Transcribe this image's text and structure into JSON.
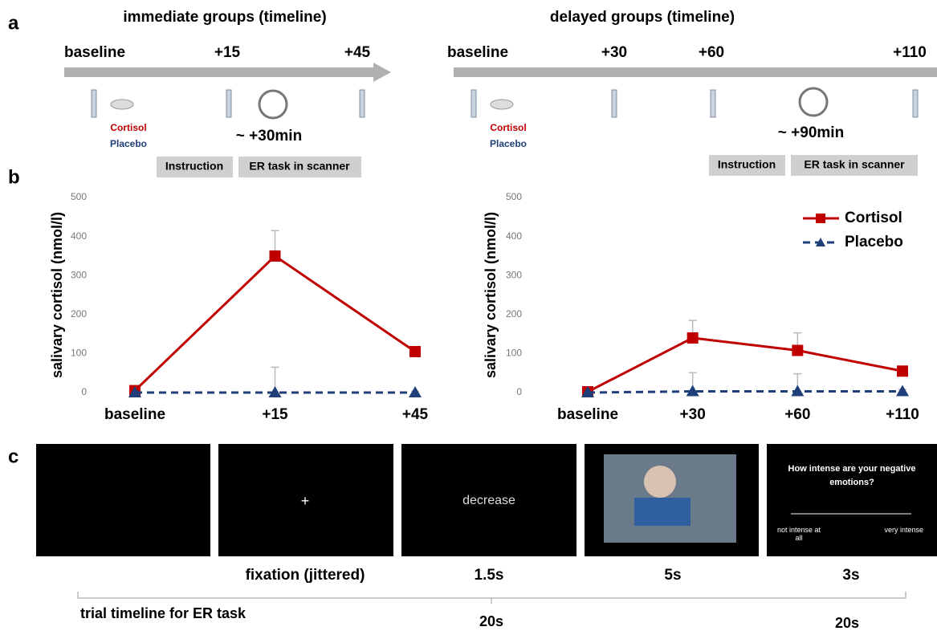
{
  "panel_labels": [
    "a",
    "b",
    "c"
  ],
  "timelines": [
    {
      "title": "immediate groups (timeline)",
      "labels": [
        "baseline",
        "+15",
        "+45"
      ],
      "drugs": [
        "Cortisol",
        "Placebo"
      ],
      "delay": "~ +30min",
      "phases": [
        "Instruction",
        "ER task in scanner"
      ]
    },
    {
      "title": "delayed groups (timeline)",
      "labels": [
        "baseline",
        "+30",
        "+60",
        "+110"
      ],
      "drugs": [
        "Cortisol",
        "Placebo"
      ],
      "delay": "~ +90min",
      "phases": [
        "Instruction",
        "ER task in scanner"
      ]
    }
  ],
  "chart_data": [
    {
      "type": "line",
      "y_label": "salivary cortisol (nmol/l)",
      "categories": [
        "baseline",
        "+15",
        "+45"
      ],
      "ylim": [
        0,
        500
      ],
      "yticks": [
        0,
        100,
        200,
        300,
        400,
        500
      ],
      "series": [
        {
          "name": "Cortisol",
          "color": "#c00000",
          "linestyle": "solid",
          "marker": "square",
          "values": [
            5,
            350,
            105
          ],
          "errors": [
            3,
            65,
            8
          ]
        },
        {
          "name": "Placebo",
          "color": "#1f3f7a",
          "linestyle": "dashed",
          "marker": "triangle",
          "values": [
            0,
            0,
            0
          ],
          "errors": [
            2,
            65,
            3
          ]
        }
      ]
    },
    {
      "type": "line",
      "y_label": "salivary cortisol (nmol/l)",
      "categories": [
        "baseline",
        "+30",
        "+60",
        "+110"
      ],
      "ylim": [
        0,
        500
      ],
      "yticks": [
        0,
        100,
        200,
        300,
        400,
        500
      ],
      "legend": "upper right",
      "series": [
        {
          "name": "Cortisol",
          "color": "#c00000",
          "linestyle": "solid",
          "marker": "square",
          "values": [
            2,
            140,
            108,
            55
          ],
          "errors": [
            3,
            45,
            45,
            10
          ]
        },
        {
          "name": "Placebo",
          "color": "#1f3f7a",
          "linestyle": "dashed",
          "marker": "triangle",
          "values": [
            0,
            3,
            3,
            3
          ],
          "errors": [
            2,
            48,
            45,
            5
          ]
        }
      ]
    }
  ],
  "trial": {
    "fixation_symbol": "+",
    "cue": "decrease",
    "question": "How intense are your negative emotions?",
    "scale_low": "not intense at all",
    "scale_high": "very intense",
    "durations": [
      "fixation (jittered)",
      "1.5s",
      "5s",
      "3s"
    ],
    "timeline_label": "trial timeline for ER task",
    "totals": [
      "20s",
      "20s"
    ]
  }
}
